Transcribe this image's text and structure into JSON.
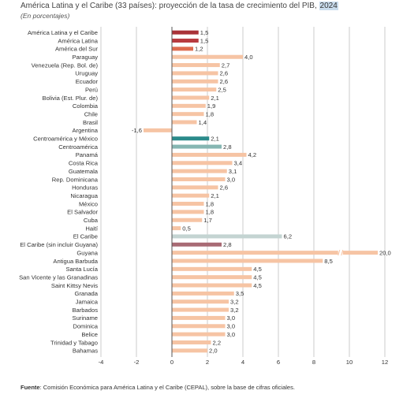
{
  "title_main": "América Latina y el Caribe (33 países): proyección de la tasa de crecimiento del PIB, ",
  "title_year": "2024",
  "subtitle": "(En porcentajes)",
  "source_label": "Fuente",
  "source_text": ": Comisión Económica para América Latina y el Caribe (CEPAL), sobre la base de cifras oficiales.",
  "chart_data": {
    "type": "bar",
    "orientation": "horizontal",
    "xlim": [
      -4,
      12
    ],
    "xticks": [
      -4,
      -2,
      0,
      2,
      4,
      6,
      8,
      10,
      12
    ],
    "grid": true,
    "categories": [
      "América Latina y el Caribe",
      "América Latina",
      "América del Sur",
      "Paraguay",
      "Venezuela (Rep. Bol. de)",
      "Uruguay",
      "Ecuador",
      "Perú",
      "Bolivia (Est. Plur. de)",
      "Colombia",
      "Chile",
      "Brasil",
      "Argentina",
      "Centroamérica y México",
      "Centroamérica",
      "Panamá",
      "Costa Rica",
      "Guatemala",
      "Rep. Dominicana",
      "Honduras",
      "Nicaragua",
      "México",
      "El Salvador",
      "Cuba",
      "Haití",
      "El Caribe",
      "El Caribe (sin incluir Guyana)",
      "Guyana",
      "Antigua Barbuda",
      "Santa Lucía",
      "San Vicente y las Granadinas",
      "Saint Kittsy Nevis",
      "Granada",
      "Jamaica",
      "Barbados",
      "Suriname",
      "Dominica",
      "Belice",
      "Trinidad y Tabago",
      "Bahamas"
    ],
    "values": [
      1.5,
      1.5,
      1.2,
      4.0,
      2.7,
      2.6,
      2.6,
      2.5,
      2.1,
      1.9,
      1.8,
      1.4,
      -1.6,
      2.1,
      2.8,
      4.2,
      3.4,
      3.1,
      3.0,
      2.6,
      2.1,
      1.8,
      1.8,
      1.7,
      0.5,
      6.2,
      2.8,
      20.0,
      8.5,
      4.5,
      4.5,
      4.5,
      3.5,
      3.2,
      3.2,
      3.0,
      3.0,
      3.0,
      2.2,
      2.0
    ],
    "value_labels": [
      "1,5",
      "1,5",
      "1,2",
      "4,0",
      "2,7",
      "2,6",
      "2,6",
      "2,5",
      "2,1",
      "1,9",
      "1,8",
      "1,4",
      "-1,6",
      "2,1",
      "2,8",
      "4,2",
      "3,4",
      "3,1",
      "3,0",
      "2,6",
      "2,1",
      "1,8",
      "1,8",
      "1,7",
      "0,5",
      "6,2",
      "2,8",
      "20,0",
      "8,5",
      "4,5",
      "4,5",
      "4,5",
      "3,5",
      "3,2",
      "3,2",
      "3,0",
      "3,0",
      "3,0",
      "2,2",
      "2,0"
    ],
    "colors": {
      "default": "#f6c4a4",
      "latam_caribe": "#a93238",
      "latam": "#b83a3f",
      "sur": "#de6b4e",
      "centroamerica_mexico": "#2a8a8a",
      "centroamerica": "#86b6b2",
      "caribe": "#c4d4d2",
      "caribe_sin_guyana": "#a86a74",
      "axis": "#555555",
      "grid": "#bfbfbf"
    },
    "bar_color_keys": [
      "latam_caribe",
      "latam",
      "sur",
      "default",
      "default",
      "default",
      "default",
      "default",
      "default",
      "default",
      "default",
      "default",
      "default",
      "centroamerica_mexico",
      "centroamerica",
      "default",
      "default",
      "default",
      "default",
      "default",
      "default",
      "default",
      "default",
      "default",
      "default",
      "caribe",
      "caribe_sin_guyana",
      "default",
      "default",
      "default",
      "default",
      "default",
      "default",
      "default",
      "default",
      "default",
      "default",
      "default",
      "default",
      "default"
    ]
  }
}
